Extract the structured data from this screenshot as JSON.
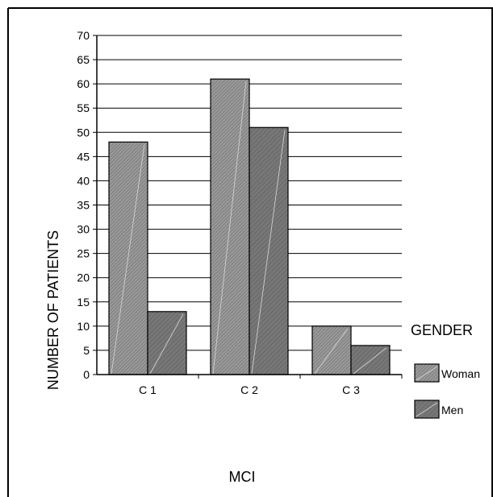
{
  "chart_data": {
    "type": "bar",
    "categories": [
      "C 1",
      "C 2",
      "C 3"
    ],
    "series": [
      {
        "name": "Woman",
        "values": [
          48,
          61,
          10
        ]
      },
      {
        "name": "Men",
        "values": [
          13,
          51,
          6
        ]
      }
    ],
    "xlabel": "MCI",
    "ylabel": "NUMBER OF PATIENTS",
    "ylim": [
      0,
      70
    ],
    "yticks": [
      0,
      5,
      10,
      15,
      20,
      25,
      30,
      35,
      40,
      45,
      50,
      55,
      60,
      65,
      70
    ],
    "grid": true,
    "legend_title": "GENDER",
    "legend_position": "right",
    "colors": {
      "Woman": "#8f8f8f",
      "Men": "#6e6e6e",
      "grid": "#000000"
    }
  }
}
